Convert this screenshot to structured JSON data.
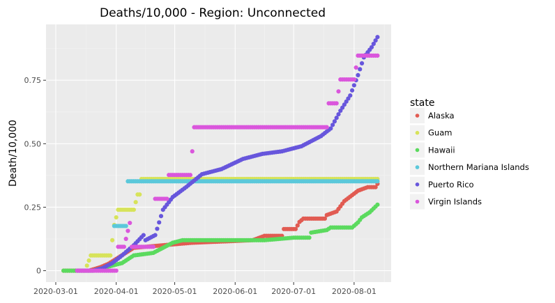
{
  "chart_data": {
    "type": "scatter",
    "title": "Deaths/10,000 - Region: Unconnected",
    "xlabel": "",
    "ylabel": "Death/10,000",
    "legend_title": "state",
    "legend_position": "right",
    "grid": true,
    "xlim": [
      "2020-02-25",
      "2020-08-20"
    ],
    "ylim": [
      -0.045,
      0.97
    ],
    "x_ticks": [
      "2020-03-01",
      "2020-04-01",
      "2020-05-01",
      "2020-06-01",
      "2020-07-01",
      "2020-08-01"
    ],
    "y_ticks": [
      0,
      0.25,
      0.5,
      0.75
    ],
    "y_tick_labels": [
      "0",
      "0.25",
      "0.50",
      "0.75"
    ],
    "date_range": [
      "2020-03-05",
      "2020-08-13"
    ],
    "series": [
      {
        "name": "Alaska",
        "color": "#E15B52",
        "points": [
          [
            "2020-03-05",
            0
          ],
          [
            "2020-03-18",
            0
          ],
          [
            "2020-03-24",
            0.014
          ],
          [
            "2020-03-28",
            0.027
          ],
          [
            "2020-04-10",
            0.09
          ],
          [
            "2020-05-10",
            0.11
          ],
          [
            "2020-06-10",
            0.12
          ],
          [
            "2020-06-16",
            0.137
          ],
          [
            "2020-06-25",
            0.137
          ],
          [
            "2020-06-26",
            0.164
          ],
          [
            "2020-07-02",
            0.164
          ],
          [
            "2020-07-04",
            0.192
          ],
          [
            "2020-07-06",
            0.205
          ],
          [
            "2020-07-17",
            0.205
          ],
          [
            "2020-07-18",
            0.219
          ],
          [
            "2020-07-23",
            0.233
          ],
          [
            "2020-07-27",
            0.274
          ],
          [
            "2020-08-03",
            0.315
          ],
          [
            "2020-08-08",
            0.329
          ],
          [
            "2020-08-12",
            0.329
          ],
          [
            "2020-08-13",
            0.342
          ]
        ]
      },
      {
        "name": "Guam",
        "color": "#D7E35A",
        "points": [
          [
            "2020-03-16",
            0
          ],
          [
            "2020-03-19",
            0.06
          ],
          [
            "2020-03-29",
            0.06
          ],
          [
            "2020-03-30",
            0.12
          ],
          [
            "2020-03-31",
            0.18
          ],
          [
            "2020-04-02",
            0.24
          ],
          [
            "2020-04-10",
            0.24
          ],
          [
            "2020-04-12",
            0.3
          ],
          [
            "2020-04-13",
            0.3
          ],
          [
            "2020-04-14",
            0.361
          ],
          [
            "2020-08-13",
            0.361
          ]
        ]
      },
      {
        "name": "Hawaii",
        "color": "#5BDA5E",
        "points": [
          [
            "2020-03-05",
            0
          ],
          [
            "2020-03-20",
            0
          ],
          [
            "2020-04-04",
            0.03
          ],
          [
            "2020-04-10",
            0.06
          ],
          [
            "2020-04-20",
            0.07
          ],
          [
            "2020-04-25",
            0.09
          ],
          [
            "2020-04-30",
            0.11
          ],
          [
            "2020-05-05",
            0.12
          ],
          [
            "2020-06-15",
            0.12
          ],
          [
            "2020-06-16",
            0.12
          ],
          [
            "2020-07-01",
            0.13
          ],
          [
            "2020-07-09",
            0.13
          ],
          [
            "2020-07-10",
            0.15
          ],
          [
            "2020-07-18",
            0.16
          ],
          [
            "2020-07-20",
            0.17
          ],
          [
            "2020-07-31",
            0.17
          ],
          [
            "2020-08-03",
            0.19
          ],
          [
            "2020-08-05",
            0.21
          ],
          [
            "2020-08-09",
            0.23
          ],
          [
            "2020-08-13",
            0.26
          ]
        ]
      },
      {
        "name": "Northern Mariana Islands",
        "color": "#5BC8DA",
        "points": [
          [
            "2020-03-31",
            0.176
          ],
          [
            "2020-04-06",
            0.176
          ],
          [
            "2020-04-07",
            0.352
          ],
          [
            "2020-08-13",
            0.352
          ]
        ]
      },
      {
        "name": "Puerto Rico",
        "color": "#6756DC",
        "points": [
          [
            "2020-03-12",
            0
          ],
          [
            "2020-03-20",
            0
          ],
          [
            "2020-03-25",
            0.01
          ],
          [
            "2020-03-30",
            0.03
          ],
          [
            "2020-04-04",
            0.06
          ],
          [
            "2020-04-10",
            0.1
          ],
          [
            "2020-04-15",
            0.14
          ],
          [
            "2020-04-16",
            0.12
          ],
          [
            "2020-04-21",
            0.14
          ],
          [
            "2020-04-25",
            0.24
          ],
          [
            "2020-04-30",
            0.29
          ],
          [
            "2020-05-07",
            0.33
          ],
          [
            "2020-05-15",
            0.38
          ],
          [
            "2020-05-25",
            0.4
          ],
          [
            "2020-06-05",
            0.44
          ],
          [
            "2020-06-15",
            0.46
          ],
          [
            "2020-06-25",
            0.47
          ],
          [
            "2020-07-05",
            0.49
          ],
          [
            "2020-07-15",
            0.53
          ],
          [
            "2020-07-20",
            0.56
          ],
          [
            "2020-07-25",
            0.63
          ],
          [
            "2020-07-30",
            0.69
          ],
          [
            "2020-08-03",
            0.77
          ],
          [
            "2020-08-06",
            0.84
          ],
          [
            "2020-08-10",
            0.88
          ],
          [
            "2020-08-13",
            0.92
          ]
        ]
      },
      {
        "name": "Virgin Islands",
        "color": "#DA56DC",
        "points": [
          [
            "2020-03-12",
            0
          ],
          [
            "2020-04-01",
            0
          ],
          [
            "2020-04-02",
            0.094
          ],
          [
            "2020-04-05",
            0.094
          ],
          [
            "2020-04-08",
            0.188
          ],
          [
            "2020-04-09",
            0.094
          ],
          [
            "2020-04-20",
            0.094
          ],
          [
            "2020-04-21",
            0.283
          ],
          [
            "2020-04-27",
            0.283
          ],
          [
            "2020-04-28",
            0.377
          ],
          [
            "2020-05-09",
            0.377
          ],
          [
            "2020-05-10",
            0.47
          ],
          [
            "2020-05-11",
            0.565
          ],
          [
            "2020-07-18",
            0.565
          ],
          [
            "2020-07-19",
            0.659
          ],
          [
            "2020-07-23",
            0.659
          ],
          [
            "2020-07-25",
            0.753
          ],
          [
            "2020-08-01",
            0.753
          ],
          [
            "2020-08-03",
            0.847
          ],
          [
            "2020-08-13",
            0.847
          ]
        ]
      }
    ]
  }
}
